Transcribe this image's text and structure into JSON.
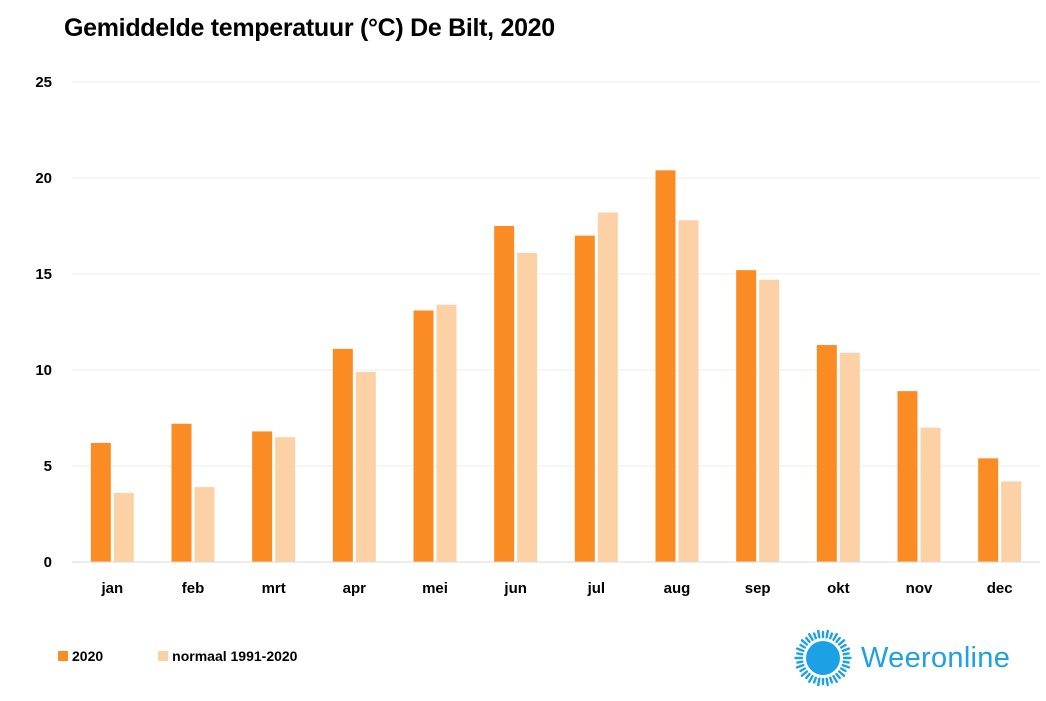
{
  "chart_data": {
    "type": "bar",
    "title": "Gemiddelde temperatuur (°C) De Bilt, 2020",
    "categories": [
      "jan",
      "feb",
      "mrt",
      "apr",
      "mei",
      "jun",
      "jul",
      "aug",
      "sep",
      "okt",
      "nov",
      "dec"
    ],
    "series": [
      {
        "name": "2020",
        "color": "#fb8c24",
        "values": [
          6.2,
          7.2,
          6.8,
          11.1,
          13.1,
          17.5,
          17.0,
          20.4,
          15.2,
          11.3,
          8.9,
          5.4
        ]
      },
      {
        "name": "normaal 1991-2020",
        "color": "#fcd1a6",
        "values": [
          3.6,
          3.9,
          6.5,
          9.9,
          13.4,
          16.1,
          18.2,
          17.8,
          14.7,
          10.9,
          7.0,
          4.2
        ]
      }
    ],
    "ylim": [
      0,
      25
    ],
    "yticks": [
      0,
      5,
      10,
      15,
      20,
      25
    ],
    "xlabel": "",
    "ylabel": "",
    "grid": true,
    "legend_position": "bottom-left"
  },
  "logo": {
    "text": "Weeronline",
    "color": "#1ca1e6"
  }
}
